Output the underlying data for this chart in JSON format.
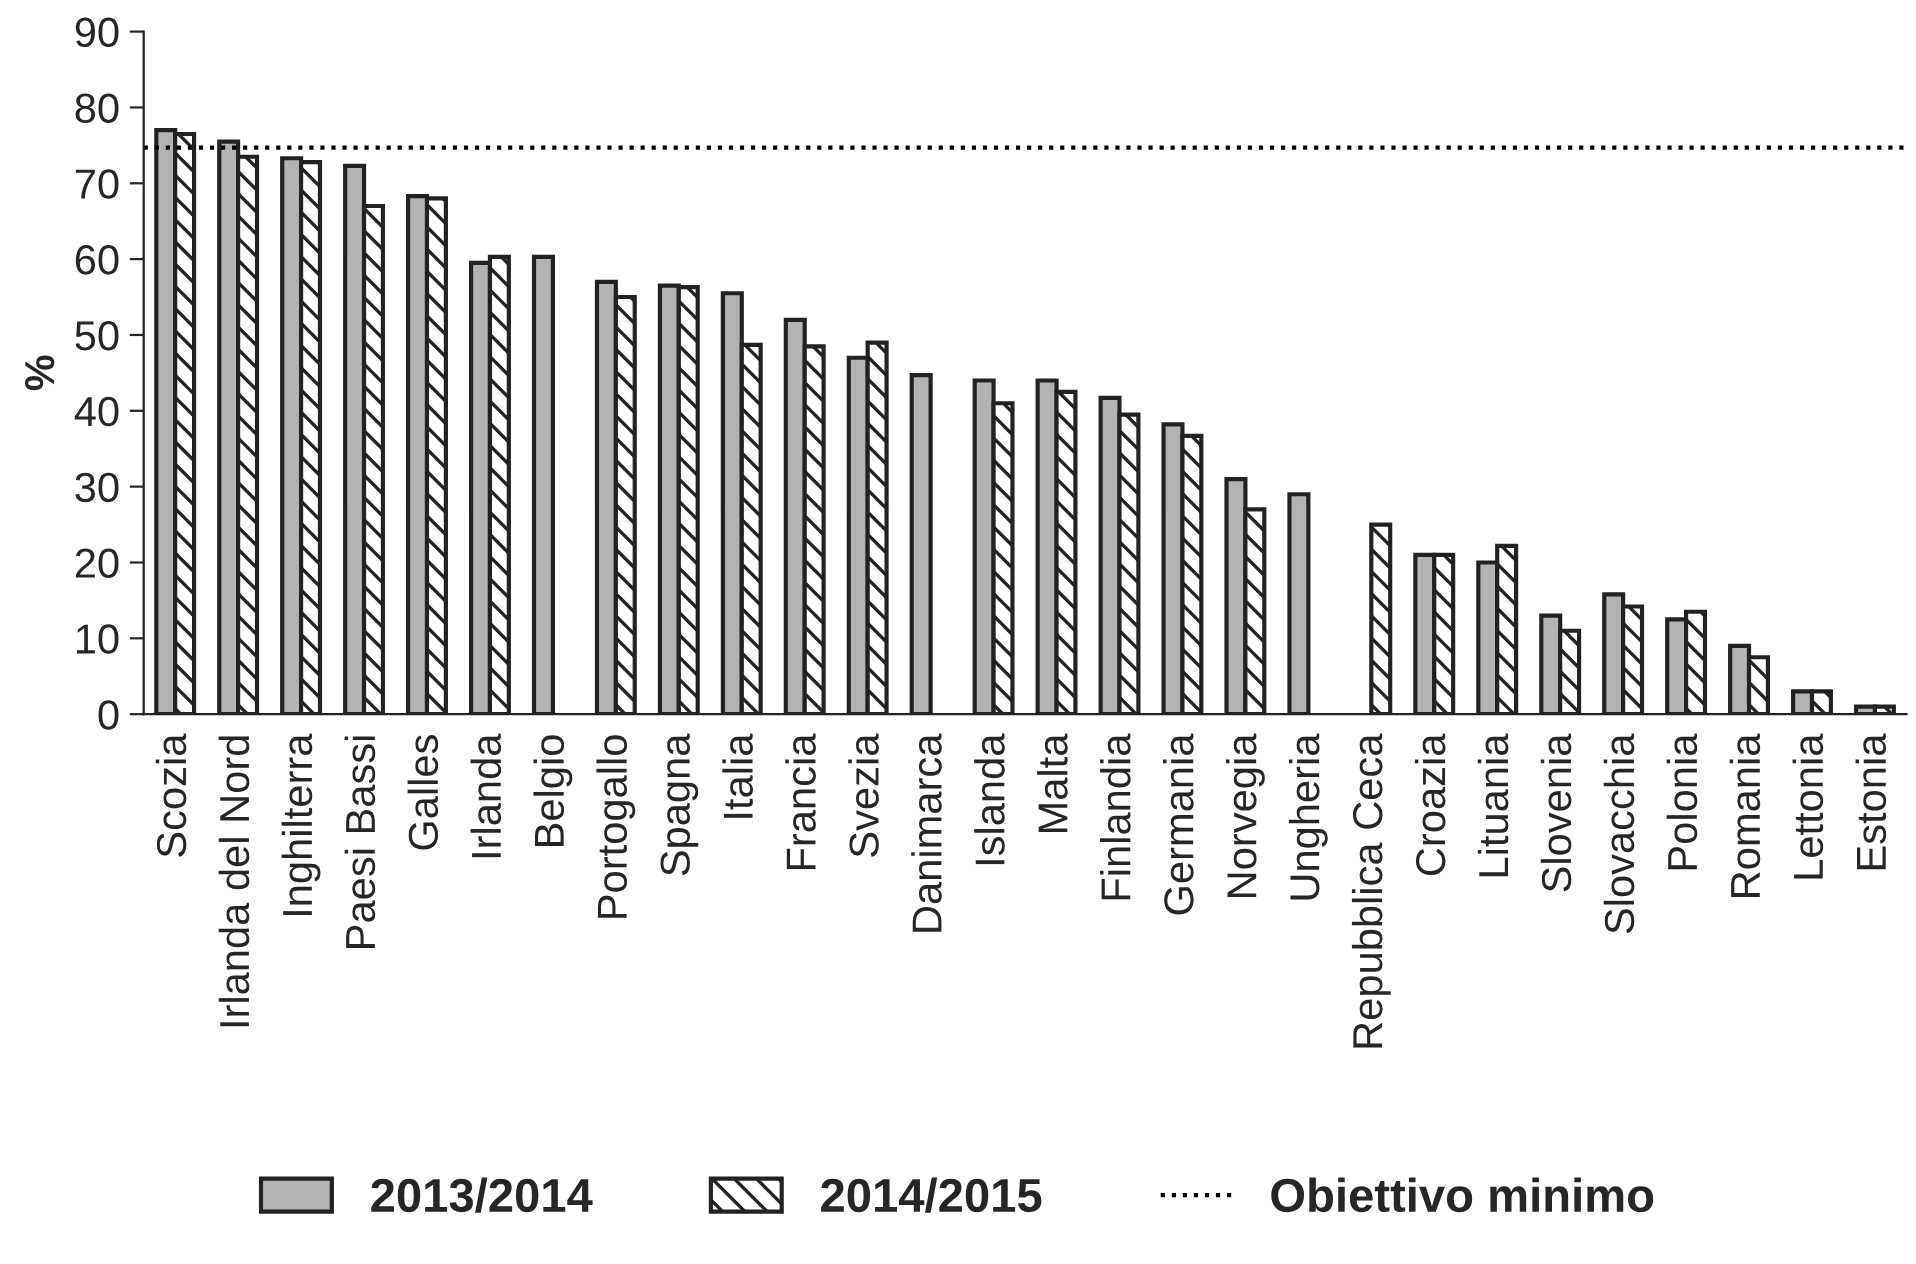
{
  "chart_data": {
    "type": "bar",
    "ylabel": "%",
    "categories": [
      "Scozia",
      "Irlanda del Nord",
      "Inghilterra",
      "Paesi Bassi",
      "Galles",
      "Irlanda",
      "Belgio",
      "Portogallo",
      "Spagna",
      "Italia",
      "Francia",
      "Svezia",
      "Danimarca",
      "Islanda",
      "Malta",
      "Finlandia",
      "Germania",
      "Norvegia",
      "Ungheria",
      "Repubblica Ceca",
      "Croazia",
      "Lituania",
      "Slovenia",
      "Slovacchia",
      "Polonia",
      "Romania",
      "Lettonia",
      "Estonia"
    ],
    "series": [
      {
        "name": "2013/2014",
        "color": "#b3b3b3",
        "values": [
          77,
          75.5,
          73.3,
          72.3,
          68.3,
          59.5,
          60.3,
          57,
          56.5,
          55.5,
          52,
          47,
          44.7,
          44,
          44,
          41.7,
          38.2,
          31,
          29,
          null,
          21,
          20,
          13,
          15.8,
          12.5,
          9,
          3,
          1
        ]
      },
      {
        "name": "2014/2015",
        "color": "#222222",
        "values": [
          76.5,
          73.5,
          72.8,
          67,
          68,
          60.3,
          null,
          55,
          56.3,
          48.7,
          48.5,
          49,
          null,
          41,
          42.5,
          39.5,
          36.7,
          27,
          null,
          25,
          21,
          22.2,
          11,
          14.2,
          13.5,
          7.5,
          3,
          1
        ]
      }
    ],
    "ylim": [
      0,
      90
    ],
    "yticks": [
      0,
      10,
      20,
      30,
      40,
      50,
      60,
      70,
      80,
      90
    ],
    "ref_lines": [
      {
        "axis": "y",
        "value": 74.7,
        "label": "Obiettivo minimo",
        "color": "#000000",
        "line_style": "dotted"
      }
    ],
    "grid": false,
    "legend": "bottom"
  }
}
